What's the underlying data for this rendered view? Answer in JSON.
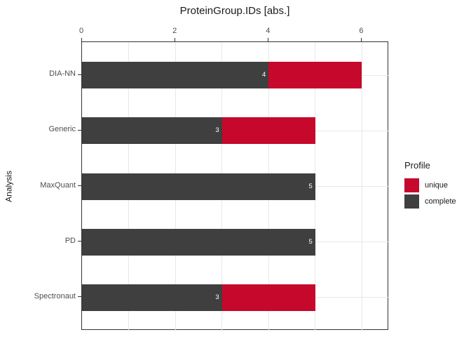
{
  "chart_data": {
    "type": "bar",
    "orientation": "horizontal",
    "stacked": true,
    "title": "ProteinGroup.IDs [abs.]",
    "xlabel": "",
    "ylabel": "Analysis",
    "categories": [
      "DIA-NN",
      "Generic",
      "MaxQuant",
      "PD",
      "Spectronaut"
    ],
    "series": [
      {
        "name": "complete",
        "color": "#3F3F3F",
        "values": [
          4,
          3,
          5,
          5,
          3
        ]
      },
      {
        "name": "unique",
        "color": "#C5082B",
        "values": [
          2,
          2,
          0,
          0,
          2
        ]
      }
    ],
    "bar_value_labels": [
      "4",
      "3",
      "5",
      "5",
      "3"
    ],
    "totals": [
      6,
      5,
      5,
      5,
      5
    ],
    "x_ticks": [
      0,
      2,
      4,
      6
    ],
    "x_gridlines": [
      1,
      2,
      3,
      4,
      5,
      6
    ],
    "xlim": [
      0,
      6.58
    ],
    "x_axis_position": "top",
    "grid": true,
    "legend_position": "right"
  },
  "legend": {
    "title": "Profile",
    "items": [
      {
        "label": "unique",
        "color": "#C5082B"
      },
      {
        "label": "complete",
        "color": "#3F3F3F"
      }
    ]
  },
  "colors": {
    "unique": "#C5082B",
    "complete": "#3F3F3F",
    "gridline": "#E8E8E8",
    "panel_border": "#333333",
    "axis_text": "#4D4D4D",
    "bar_label_text": "#FFFFFF"
  }
}
